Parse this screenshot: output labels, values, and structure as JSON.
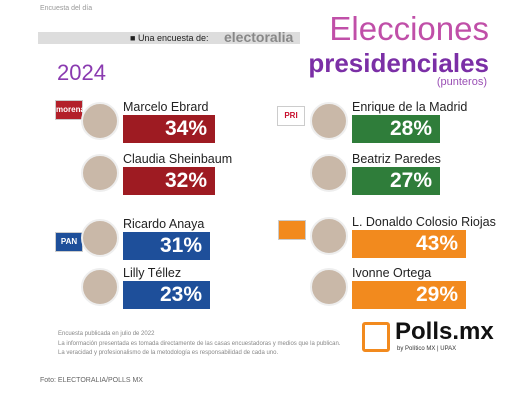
{
  "header": {
    "label": "Encuesta del día",
    "sponsor_prefix": "Una encuesta de:",
    "sponsor": "electoralia",
    "title_line1": "Elecciones",
    "title_line2": "presidenciales",
    "subtitle": "(punteros)",
    "year": "2024"
  },
  "groups": [
    {
      "logo": "morena",
      "candidates": [
        {
          "name": "Marcelo Ebrard",
          "value": "34%"
        },
        {
          "name": "Claudia Sheinbaum",
          "value": "32%"
        }
      ]
    },
    {
      "logo": "PRI",
      "candidates": [
        {
          "name": "Enrique de la Madrid",
          "value": "28%"
        },
        {
          "name": "Beatriz Paredes",
          "value": "27%"
        }
      ]
    },
    {
      "logo": "PAN",
      "candidates": [
        {
          "name": "Ricardo Anaya",
          "value": "31%"
        },
        {
          "name": "Lilly Téllez",
          "value": "23%"
        }
      ]
    },
    {
      "candidates": [
        {
          "name": "L. Donaldo Colosio Riojas",
          "value": "43%"
        },
        {
          "name": "Ivonne Ortega",
          "value": "29%"
        }
      ]
    }
  ],
  "footer": {
    "lines": [
      "Encuesta publicada en julio de 2022",
      "La información presentada es tomada directamente de las casas encuestadoras y medios que la publican.",
      "La veracidad y profesionalismo de la metodología es responsabilidad de cada uno."
    ],
    "brand": "Polls.mx",
    "brand_sub": "by Político MX | UPAX",
    "credit": "Foto: ELECTORALIA/POLLS MX"
  }
}
